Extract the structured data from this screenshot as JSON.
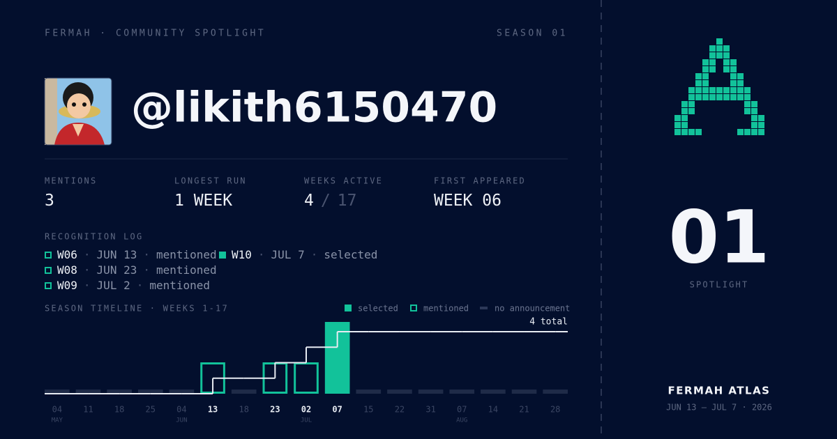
{
  "header": {
    "title": "FERMAH · COMMUNITY SPOTLIGHT",
    "season": "SEASON 01"
  },
  "profile": {
    "handle": "@likith6150470"
  },
  "stats": [
    {
      "label": "MENTIONS",
      "value": 3
    },
    {
      "label": "LONGEST RUN",
      "value": "1 WEEK"
    },
    {
      "label": "WEEKS ACTIVE",
      "value": 4,
      "separator": "/",
      "total": 17
    },
    {
      "label": "FIRST APPEARED",
      "value": "WEEK 06"
    }
  ],
  "log": {
    "title": "RECOGNITION LOG",
    "separator": "·",
    "items": [
      {
        "week": "W06",
        "date": "JUN 13",
        "status": "mentioned"
      },
      {
        "week": "W08",
        "date": "JUN 23",
        "status": "mentioned"
      },
      {
        "week": "W09",
        "date": "JUL 2",
        "status": "mentioned"
      },
      {
        "week": "W10",
        "date": "JUL 7",
        "status": "selected"
      }
    ]
  },
  "chart_data": {
    "type": "step-timeline",
    "title": "SEASON TIMELINE · WEEKS 1-17",
    "legend": [
      {
        "status": "selected",
        "label": "selected"
      },
      {
        "status": "mentioned",
        "label": "mentioned"
      },
      {
        "status": "none",
        "label": "no announcement"
      }
    ],
    "categories": [
      "04",
      "11",
      "18",
      "25",
      "04",
      "13",
      "18",
      "23",
      "02",
      "07",
      "15",
      "22",
      "31",
      "07",
      "14",
      "21",
      "28"
    ],
    "months": [
      "MAY",
      null,
      null,
      null,
      "JUN",
      null,
      null,
      null,
      "JUL",
      null,
      null,
      null,
      null,
      "AUG",
      null,
      null,
      null
    ],
    "status": [
      "none",
      "none",
      "none",
      "none",
      "none",
      "mentioned",
      "none",
      "mentioned",
      "mentioned",
      "selected",
      "none",
      "none",
      "none",
      "none",
      "none",
      "none",
      "none"
    ],
    "values": [
      0,
      0,
      0,
      0,
      0,
      1,
      1,
      2,
      3,
      4,
      4,
      4,
      4,
      4,
      4,
      4,
      4
    ],
    "total_label": "4 total",
    "ylim": [
      0,
      4
    ],
    "color": "#12c29a"
  },
  "sidebar": {
    "number": "01",
    "label": "SPOTLIGHT",
    "brand": "FERMAH ATLAS",
    "range": "JUN 13 — JUL 7 · 2026"
  }
}
